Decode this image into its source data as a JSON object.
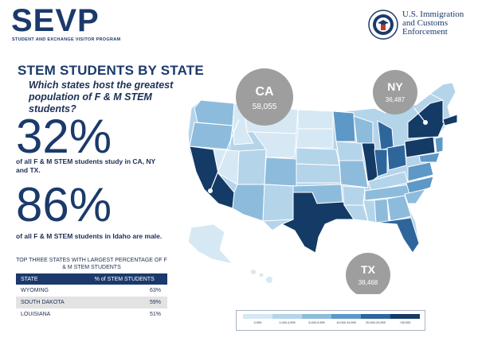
{
  "header": {
    "logo": "SEVP",
    "logo_subtitle": "STUDENT AND EXCHANGE VISITOR PROGRAM",
    "agency": "U.S. Immigration\nand Customs\nEnforcement"
  },
  "headline": "STEM STUDENTS BY STATE",
  "question": "Which states host the greatest population of F & M STEM students?",
  "stats": [
    {
      "value": "32%",
      "text": "of all F & M STEM students study in CA, NY and TX."
    },
    {
      "value": "86%",
      "text": "of all F & M STEM students in Idaho are male."
    }
  ],
  "table": {
    "title": "TOP THREE STATES WITH LARGEST PERCENTAGE OF F & M STEM STUDENTS",
    "headers": [
      "STATE",
      "% of STEM STUDENTS"
    ],
    "rows": [
      [
        "WYOMING",
        "63%"
      ],
      [
        "SOUTH DAKOTA",
        "59%"
      ],
      [
        "LOUISIANA",
        "51%"
      ]
    ]
  },
  "callouts": [
    {
      "state": "CA",
      "value": "58,055"
    },
    {
      "state": "NY",
      "value": "36,487"
    },
    {
      "state": "TX",
      "value": "38,468"
    }
  ],
  "legend": {
    "labels": [
      "0-999",
      "1,000-4,999",
      "5,000-9,999",
      "10,000-19,999",
      "20,000-29,999",
      "+30,000"
    ],
    "colors": [
      "#d6e8f3",
      "#b4d4ea",
      "#8dbbdc",
      "#5d98c6",
      "#2e669c",
      "#143a66"
    ]
  },
  "colors": {
    "navy": "#1b3a6b",
    "callout_gray": "#9e9e9e"
  }
}
